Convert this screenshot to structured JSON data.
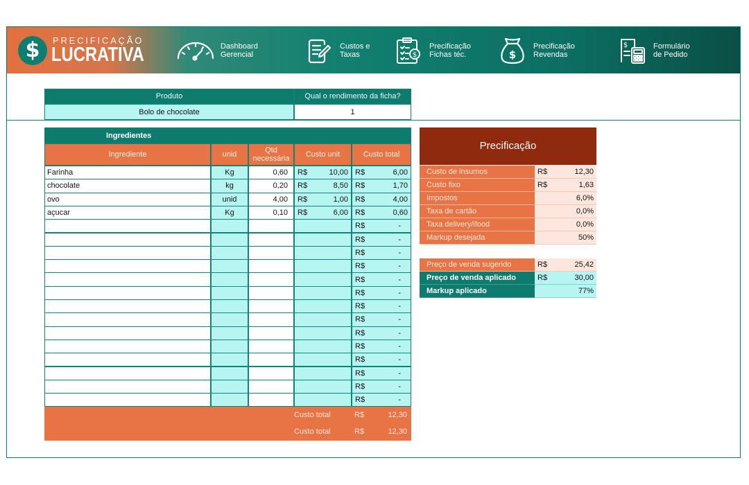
{
  "brand": {
    "top": "PRECIFICAÇÃO",
    "main": "LUCRATIVA",
    "symbol": "$"
  },
  "nav": [
    {
      "line1": "Dashboard",
      "line2": "Gerencial",
      "icon": "gauge-icon"
    },
    {
      "line1": "Custos e",
      "line2": "Taxas",
      "icon": "document-edit-icon"
    },
    {
      "line1": "Precificação",
      "line2": "Fichas téc.",
      "icon": "clipboard-money-icon"
    },
    {
      "line1": "Precificação",
      "line2": "Revendas",
      "icon": "money-bag-icon"
    },
    {
      "line1": "Formulário",
      "line2": "de Pedido",
      "icon": "calculator-invoice-icon"
    }
  ],
  "product": {
    "header_label": "Produto",
    "header_yield": "Qual o rendimento da ficha?",
    "name": "Bolo de chocolate",
    "yield": "1"
  },
  "ingredients": {
    "title": "Ingredientes",
    "columns": [
      "Ingrediente",
      "unid",
      "Qtd necessária",
      "Custo unit",
      "Custo total"
    ],
    "rows": [
      {
        "name": "Farinha",
        "unit": "Kg",
        "qty": "0,60",
        "cur1": "R$",
        "unit_cost": "10,00",
        "cur2": "R$",
        "total": "6,00"
      },
      {
        "name": "chocolate",
        "unit": "kg",
        "qty": "0,20",
        "cur1": "R$",
        "unit_cost": "8,50",
        "cur2": "R$",
        "total": "1,70"
      },
      {
        "name": "ovo",
        "unit": "unid",
        "qty": "4,00",
        "cur1": "R$",
        "unit_cost": "1,00",
        "cur2": "R$",
        "total": "4,00"
      },
      {
        "name": "açucar",
        "unit": "Kg",
        "qty": "0,10",
        "cur1": "R$",
        "unit_cost": "6,00",
        "cur2": "R$",
        "total": "0,60"
      },
      {
        "name": "",
        "unit": "",
        "qty": "",
        "cur1": "",
        "unit_cost": "",
        "cur2": "R$",
        "total": "-"
      },
      {
        "name": "",
        "unit": "",
        "qty": "",
        "cur1": "",
        "unit_cost": "",
        "cur2": "R$",
        "total": "-"
      },
      {
        "name": "",
        "unit": "",
        "qty": "",
        "cur1": "",
        "unit_cost": "",
        "cur2": "R$",
        "total": "-"
      },
      {
        "name": "",
        "unit": "",
        "qty": "",
        "cur1": "",
        "unit_cost": "",
        "cur2": "R$",
        "total": "-"
      },
      {
        "name": "",
        "unit": "",
        "qty": "",
        "cur1": "",
        "unit_cost": "",
        "cur2": "R$",
        "total": "-"
      },
      {
        "name": "",
        "unit": "",
        "qty": "",
        "cur1": "",
        "unit_cost": "",
        "cur2": "R$",
        "total": "-"
      },
      {
        "name": "",
        "unit": "",
        "qty": "",
        "cur1": "",
        "unit_cost": "",
        "cur2": "R$",
        "total": "-"
      },
      {
        "name": "",
        "unit": "",
        "qty": "",
        "cur1": "",
        "unit_cost": "",
        "cur2": "R$",
        "total": "-"
      },
      {
        "name": "",
        "unit": "",
        "qty": "",
        "cur1": "",
        "unit_cost": "",
        "cur2": "R$",
        "total": "-"
      },
      {
        "name": "",
        "unit": "",
        "qty": "",
        "cur1": "",
        "unit_cost": "",
        "cur2": "R$",
        "total": "-"
      },
      {
        "name": "",
        "unit": "",
        "qty": "",
        "cur1": "",
        "unit_cost": "",
        "cur2": "R$",
        "total": "-"
      },
      {
        "name": "",
        "unit": "",
        "qty": "",
        "cur1": "",
        "unit_cost": "",
        "cur2": "R$",
        "total": "-"
      },
      {
        "name": "",
        "unit": "",
        "qty": "",
        "cur1": "",
        "unit_cost": "",
        "cur2": "R$",
        "total": "-"
      },
      {
        "name": "",
        "unit": "",
        "qty": "",
        "cur1": "",
        "unit_cost": "",
        "cur2": "R$",
        "total": "-"
      }
    ],
    "footer": [
      {
        "label": "Custo total",
        "cur": "R$",
        "value": "12,30"
      },
      {
        "label": "Custo total",
        "cur": "R$",
        "value": "12,30"
      }
    ]
  },
  "pricing": {
    "title": "Precificação",
    "rows": [
      {
        "label": "Custo de insumos",
        "cur": "R$",
        "value": "12,30"
      },
      {
        "label": "Custo fixo",
        "cur": "R$",
        "value": "1,63"
      },
      {
        "label": "Impostos",
        "cur": "",
        "value": "6,0%"
      },
      {
        "label": "Taxa de cartão",
        "cur": "",
        "value": "0,0%"
      },
      {
        "label": "Taxa delivery/ifood",
        "cur": "",
        "value": "0,0%"
      },
      {
        "label": "Markup desejada",
        "cur": "",
        "value": "50%"
      }
    ],
    "result": [
      {
        "label": "Preço de venda sugerido",
        "cur": "R$",
        "value": "25,42",
        "style": "orange"
      },
      {
        "label": "Preço de venda aplicado",
        "cur": "R$",
        "value": "30,00",
        "style": "teal"
      },
      {
        "label": "Markup aplicado",
        "cur": "",
        "value": "77%",
        "style": "teal"
      }
    ]
  },
  "colors": {
    "teal": "#0e7b6f",
    "aqua": "#b7f5f2",
    "orange": "#e87445",
    "dark_red": "#8f2a0f",
    "peach": "#fde6dd"
  }
}
